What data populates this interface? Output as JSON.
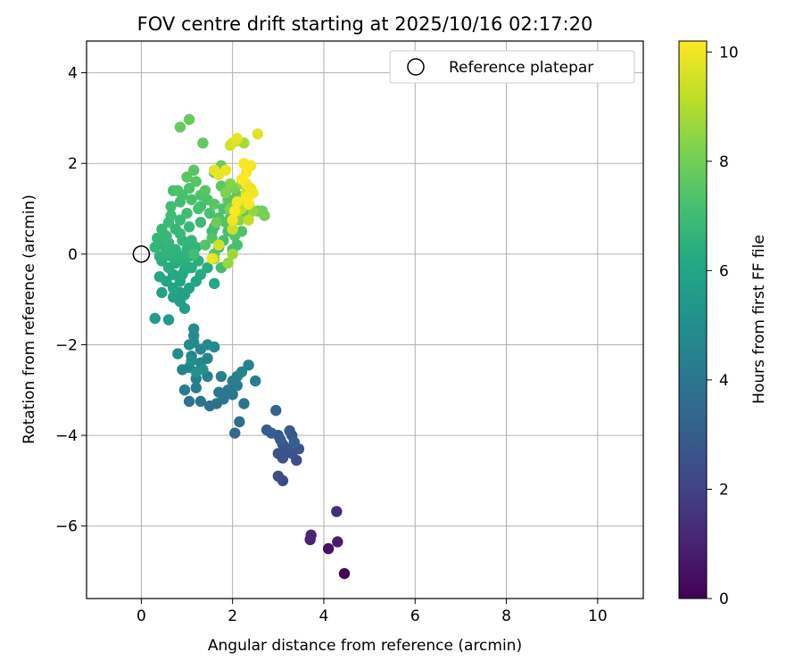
{
  "chart_data": {
    "type": "scatter",
    "title": "FOV centre drift starting at 2025/10/16 02:17:20",
    "xlabel": "Angular distance from reference (arcmin)",
    "ylabel": "Rotation from reference (arcmin)",
    "xlim": [
      -1.2,
      11.0
    ],
    "ylim": [
      -7.6,
      4.7
    ],
    "xticks": [
      0,
      2,
      4,
      6,
      8,
      10
    ],
    "xtick_labels": [
      "0",
      "2",
      "4",
      "6",
      "8",
      "10"
    ],
    "yticks": [
      4,
      2,
      0,
      -2,
      -4,
      -6
    ],
    "ytick_labels": [
      "4",
      "2",
      "0",
      "−2",
      "−4",
      "−6"
    ],
    "grid": true,
    "legend": {
      "position": "top-right",
      "label": "Reference platepar"
    },
    "reference_point": {
      "x": 0,
      "y": 0
    },
    "colorbar": {
      "label": "Hours from first FF file",
      "range": [
        0,
        10.2
      ],
      "ticks": [
        0,
        2,
        4,
        6,
        8,
        10
      ],
      "tick_labels": [
        "0",
        "2",
        "4",
        "6",
        "8",
        "10"
      ],
      "colormap": "viridis"
    },
    "points": [
      [
        4.45,
        -7.05,
        0.1
      ],
      [
        4.1,
        -6.5,
        0.5
      ],
      [
        4.3,
        -6.35,
        0.8
      ],
      [
        3.7,
        -6.3,
        1.0
      ],
      [
        3.72,
        -6.2,
        1.1
      ],
      [
        4.28,
        -5.68,
        1.3
      ],
      [
        3.1,
        -5.0,
        2.2
      ],
      [
        3.0,
        -4.9,
        2.3
      ],
      [
        3.4,
        -4.55,
        2.4
      ],
      [
        3.1,
        -4.5,
        2.5
      ],
      [
        3.0,
        -4.4,
        2.5
      ],
      [
        3.3,
        -4.4,
        2.6
      ],
      [
        3.2,
        -4.3,
        2.6
      ],
      [
        3.45,
        -4.3,
        2.7
      ],
      [
        3.1,
        -4.2,
        2.7
      ],
      [
        3.0,
        -4.0,
        2.8
      ],
      [
        3.3,
        -4.0,
        2.8
      ],
      [
        3.25,
        -3.9,
        2.9
      ],
      [
        2.75,
        -3.88,
        2.9
      ],
      [
        2.85,
        -3.95,
        3.0
      ],
      [
        3.05,
        -4.1,
        3.0
      ],
      [
        3.35,
        -4.15,
        3.1
      ],
      [
        2.95,
        -3.45,
        3.3
      ],
      [
        2.05,
        -3.95,
        3.6
      ],
      [
        2.15,
        -3.7,
        3.7
      ],
      [
        1.5,
        -3.35,
        3.8
      ],
      [
        1.65,
        -3.3,
        3.8
      ],
      [
        2.25,
        -3.3,
        3.9
      ],
      [
        1.3,
        -3.25,
        3.9
      ],
      [
        1.05,
        -3.25,
        4.0
      ],
      [
        1.8,
        -3.2,
        4.0
      ],
      [
        2.0,
        -3.1,
        4.1
      ],
      [
        1.7,
        -3.05,
        4.1
      ],
      [
        1.9,
        -3.0,
        4.1
      ],
      [
        0.95,
        -3.0,
        4.2
      ],
      [
        1.2,
        -2.95,
        4.2
      ],
      [
        2.1,
        -2.9,
        4.2
      ],
      [
        2.0,
        -2.8,
        4.3
      ],
      [
        2.5,
        -2.8,
        4.3
      ],
      [
        1.2,
        -2.75,
        4.3
      ],
      [
        1.75,
        -2.7,
        4.4
      ],
      [
        1.45,
        -2.7,
        4.4
      ],
      [
        2.1,
        -2.7,
        4.4
      ],
      [
        2.2,
        -2.6,
        4.5
      ],
      [
        2.35,
        -2.45,
        4.5
      ],
      [
        0.9,
        -2.55,
        4.5
      ],
      [
        1.05,
        -2.5,
        4.6
      ],
      [
        1.3,
        -2.4,
        4.6
      ],
      [
        1.45,
        -2.3,
        4.6
      ],
      [
        1.1,
        -2.25,
        4.7
      ],
      [
        1.3,
        -2.1,
        4.7
      ],
      [
        1.45,
        -2.0,
        4.7
      ],
      [
        1.6,
        -2.05,
        4.8
      ],
      [
        1.05,
        -2.0,
        4.8
      ],
      [
        1.15,
        -1.95,
        4.8
      ],
      [
        1.15,
        -1.8,
        4.9
      ],
      [
        1.15,
        -1.65,
        4.9
      ],
      [
        0.8,
        -2.2,
        4.9
      ],
      [
        1.1,
        -2.35,
        5.0
      ],
      [
        1.35,
        -2.55,
        5.0
      ],
      [
        1.2,
        -2.6,
        5.1
      ],
      [
        0.3,
        -1.42,
        5.6
      ],
      [
        0.6,
        -1.45,
        5.6
      ],
      [
        0.95,
        -1.2,
        5.7
      ],
      [
        0.85,
        -1.05,
        5.7
      ],
      [
        0.7,
        -0.95,
        5.8
      ],
      [
        0.85,
        -0.85,
        5.8
      ],
      [
        0.95,
        -0.9,
        5.8
      ],
      [
        0.45,
        -0.85,
        5.9
      ],
      [
        0.7,
        -0.75,
        5.9
      ],
      [
        1.05,
        -0.75,
        5.9
      ],
      [
        0.55,
        -0.6,
        6.0
      ],
      [
        0.85,
        -0.6,
        6.0
      ],
      [
        1.2,
        -0.6,
        6.0
      ],
      [
        1.6,
        -0.65,
        6.1
      ],
      [
        0.4,
        -0.5,
        6.1
      ],
      [
        0.7,
        -0.45,
        6.1
      ],
      [
        0.9,
        -0.45,
        6.2
      ],
      [
        1.3,
        -0.45,
        6.2
      ],
      [
        0.95,
        -0.35,
        6.2
      ],
      [
        0.6,
        -0.3,
        6.3
      ],
      [
        1.1,
        -0.3,
        6.3
      ],
      [
        1.45,
        -0.3,
        6.3
      ],
      [
        0.75,
        -0.2,
        6.3
      ],
      [
        0.95,
        -0.2,
        6.4
      ],
      [
        1.25,
        -0.15,
        6.4
      ],
      [
        0.45,
        -0.15,
        6.4
      ],
      [
        0.4,
        -0.05,
        6.5
      ],
      [
        0.65,
        -0.05,
        6.5
      ],
      [
        0.85,
        -0.05,
        6.5
      ],
      [
        1.05,
        -0.05,
        6.5
      ],
      [
        0.55,
        0.05,
        6.6
      ],
      [
        0.75,
        0.1,
        6.6
      ],
      [
        1.0,
        0.1,
        6.6
      ],
      [
        1.2,
        0.15,
        6.6
      ],
      [
        0.45,
        0.2,
        6.6
      ],
      [
        0.3,
        0.15,
        6.7
      ],
      [
        0.6,
        0.25,
        6.7
      ],
      [
        0.9,
        0.3,
        6.7
      ],
      [
        1.1,
        0.3,
        6.7
      ],
      [
        0.35,
        0.35,
        6.7
      ],
      [
        0.55,
        0.4,
        6.8
      ],
      [
        0.85,
        0.45,
        6.8
      ],
      [
        0.45,
        0.55,
        6.8
      ],
      [
        0.75,
        0.55,
        6.8
      ],
      [
        1.05,
        0.6,
        6.8
      ],
      [
        0.6,
        0.7,
        6.9
      ],
      [
        0.85,
        0.75,
        6.9
      ],
      [
        1.3,
        0.7,
        6.9
      ],
      [
        1.55,
        0.5,
        6.9
      ],
      [
        0.65,
        0.85,
        7.0
      ],
      [
        1.0,
        0.9,
        7.0
      ],
      [
        0.65,
        1.05,
        7.0
      ],
      [
        0.85,
        1.15,
        7.0
      ],
      [
        1.3,
        1.05,
        7.0
      ],
      [
        1.7,
        0.15,
        7.0
      ],
      [
        1.8,
        0.3,
        7.1
      ],
      [
        1.6,
        0.6,
        7.1
      ],
      [
        2.0,
        0.1,
        7.1
      ],
      [
        1.75,
        -0.3,
        7.1
      ],
      [
        1.15,
        0.0,
        7.1
      ],
      [
        0.7,
        1.4,
        7.2
      ],
      [
        0.9,
        1.3,
        7.2
      ],
      [
        1.1,
        1.2,
        7.2
      ],
      [
        1.25,
        1.0,
        7.2
      ],
      [
        1.5,
        0.9,
        7.2
      ],
      [
        1.9,
        0.5,
        7.2
      ],
      [
        2.1,
        0.2,
        7.2
      ],
      [
        0.8,
        1.4,
        7.3
      ],
      [
        1.05,
        1.45,
        7.3
      ],
      [
        1.3,
        1.3,
        7.3
      ],
      [
        1.45,
        1.2,
        7.3
      ],
      [
        1.7,
        0.8,
        7.3
      ],
      [
        2.2,
        0.5,
        7.3
      ],
      [
        1.8,
        1.0,
        7.3
      ],
      [
        1.55,
        0.35,
        7.4
      ],
      [
        1.4,
        0.2,
        7.4
      ],
      [
        1.6,
        0.0,
        7.4
      ],
      [
        1.95,
        0.8,
        7.4
      ],
      [
        2.05,
        0.4,
        7.4
      ],
      [
        1.85,
        0.7,
        7.4
      ],
      [
        1.2,
        1.6,
        7.5
      ],
      [
        1.4,
        1.4,
        7.5
      ],
      [
        1.0,
        1.7,
        7.5
      ],
      [
        1.15,
        1.85,
        7.5
      ],
      [
        1.6,
        1.1,
        7.5
      ],
      [
        1.9,
        1.2,
        7.5
      ],
      [
        2.3,
        0.9,
        7.5
      ],
      [
        1.75,
        1.5,
        7.6
      ],
      [
        2.1,
        1.3,
        7.6
      ],
      [
        2.55,
        0.95,
        7.6
      ],
      [
        1.6,
        1.8,
        7.6
      ],
      [
        1.35,
        2.45,
        7.7
      ],
      [
        0.85,
        2.8,
        7.8
      ],
      [
        1.05,
        2.97,
        7.8
      ],
      [
        2.15,
        1.15,
        7.8
      ],
      [
        1.75,
        1.95,
        7.8
      ],
      [
        2.35,
        1.1,
        7.9
      ],
      [
        1.65,
        0.7,
        7.9
      ],
      [
        2.65,
        0.95,
        8.0
      ],
      [
        2.7,
        0.85,
        8.1
      ],
      [
        2.05,
        1.45,
        8.1
      ],
      [
        1.95,
        1.0,
        8.2
      ],
      [
        1.85,
        1.35,
        8.2
      ],
      [
        2.25,
        1.25,
        8.3
      ],
      [
        1.95,
        1.55,
        8.3
      ],
      [
        2.15,
        0.75,
        8.4
      ],
      [
        2.45,
        0.95,
        8.5
      ],
      [
        2.2,
        1.55,
        8.6
      ],
      [
        1.9,
        -0.2,
        8.6
      ],
      [
        1.6,
        -0.1,
        8.7
      ],
      [
        2.0,
        0.0,
        8.7
      ],
      [
        2.25,
        2.45,
        8.8
      ],
      [
        2.1,
        2.5,
        9.0
      ],
      [
        2.2,
        1.0,
        9.1
      ],
      [
        2.35,
        0.75,
        9.2
      ],
      [
        2.1,
        0.95,
        9.3
      ],
      [
        2.3,
        1.35,
        9.4
      ],
      [
        2.0,
        0.55,
        9.4
      ],
      [
        1.7,
        0.2,
        9.5
      ],
      [
        1.95,
        2.4,
        9.5
      ],
      [
        2.0,
        2.45,
        9.6
      ],
      [
        2.55,
        2.65,
        9.7
      ],
      [
        2.1,
        2.55,
        9.8
      ],
      [
        1.6,
        1.85,
        9.8
      ],
      [
        1.7,
        1.75,
        9.9
      ],
      [
        1.85,
        1.85,
        9.9
      ],
      [
        1.55,
        -0.1,
        9.9
      ],
      [
        2.0,
        0.75,
        10.0
      ],
      [
        2.35,
        1.1,
        10.0
      ],
      [
        2.4,
        1.45,
        10.0
      ],
      [
        2.3,
        1.55,
        10.0
      ],
      [
        2.45,
        1.35,
        10.0
      ],
      [
        2.3,
        1.8,
        10.1
      ],
      [
        2.25,
        2.0,
        10.1
      ],
      [
        2.4,
        1.95,
        10.1
      ],
      [
        2.1,
        1.15,
        10.1
      ],
      [
        2.3,
        1.25,
        10.1
      ],
      [
        2.05,
        0.95,
        10.2
      ],
      [
        2.2,
        1.65,
        10.2
      ],
      [
        2.35,
        1.15,
        10.2
      ]
    ]
  }
}
